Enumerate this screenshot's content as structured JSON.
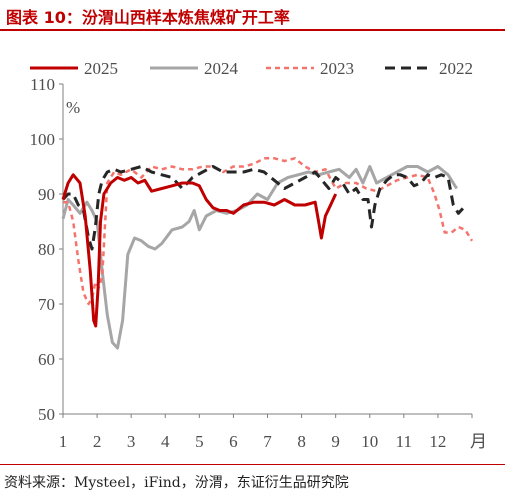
{
  "title": "图表 10：汾渭山西样本炼焦煤矿开工率",
  "source": "资料来源：Mysteel，iFind，汾渭，东证衍生品研究院",
  "colors": {
    "title_red": "#c00000",
    "s2025": "#c00000",
    "s2024": "#a6a6a6",
    "s2023": "#f4736b",
    "s2022": "#262626",
    "axis": "#7f7f7f",
    "text": "#4d4d4d"
  },
  "chart_data": {
    "type": "line",
    "ylabel": "%",
    "xlabel": "月",
    "ylim": [
      50,
      110
    ],
    "yticks": [
      50,
      60,
      70,
      80,
      90,
      100,
      110
    ],
    "xlim": [
      1,
      13
    ],
    "xticks": [
      1,
      2,
      3,
      4,
      5,
      6,
      7,
      8,
      9,
      10,
      11,
      12
    ],
    "legend_position": "top",
    "series": [
      {
        "name": "2025",
        "style": "solid",
        "x": [
          1.0,
          1.15,
          1.3,
          1.5,
          1.65,
          1.8,
          1.9,
          1.96,
          2.03,
          2.1,
          2.2,
          2.4,
          2.6,
          2.8,
          3.0,
          3.2,
          3.4,
          3.6,
          3.9,
          4.2,
          4.5,
          4.8,
          5.0,
          5.2,
          5.4,
          5.6,
          5.8,
          6.0,
          6.3,
          6.6,
          6.9,
          7.2,
          7.5,
          7.8,
          8.1,
          8.4,
          8.5,
          8.58,
          8.7,
          8.85,
          9.0
        ],
        "y": [
          89,
          92,
          93.5,
          92,
          86,
          76,
          67,
          66,
          73,
          85,
          90,
          92,
          93,
          92.5,
          93,
          92,
          92.5,
          90.5,
          91,
          91.5,
          92,
          92,
          91.5,
          89,
          87.5,
          87,
          87,
          86.5,
          88,
          88.5,
          88.5,
          88,
          89,
          88,
          88,
          88.5,
          85,
          82,
          86,
          88,
          90
        ]
      },
      {
        "name": "2024",
        "style": "solid",
        "x": [
          1.0,
          1.15,
          1.3,
          1.5,
          1.7,
          1.85,
          2.0,
          2.15,
          2.3,
          2.45,
          2.6,
          2.75,
          2.9,
          3.1,
          3.3,
          3.5,
          3.7,
          3.9,
          4.2,
          4.5,
          4.7,
          4.85,
          5.0,
          5.2,
          5.5,
          5.8,
          6.1,
          6.4,
          6.7,
          7.0,
          7.3,
          7.6,
          7.9,
          8.2,
          8.5,
          8.8,
          9.1,
          9.4,
          9.6,
          9.8,
          10.0,
          10.2,
          10.5,
          10.8,
          11.1,
          11.4,
          11.7,
          12.0,
          12.3,
          12.55
        ],
        "y": [
          85.5,
          89,
          88,
          86.5,
          88.5,
          87,
          85,
          76,
          68,
          63,
          62,
          67,
          79,
          82,
          81.5,
          80.5,
          80,
          81,
          83.5,
          84,
          85,
          87,
          83.5,
          86,
          87,
          86.5,
          87,
          88,
          90,
          89,
          92,
          93,
          93.5,
          94,
          93.5,
          94,
          94.5,
          93,
          94.5,
          92,
          95,
          92,
          93,
          94,
          95,
          95,
          94,
          95,
          93.5,
          91
        ]
      },
      {
        "name": "2023",
        "style": "dash",
        "x": [
          1.0,
          1.15,
          1.3,
          1.45,
          1.6,
          1.75,
          1.85,
          1.95,
          2.05,
          2.15,
          2.3,
          2.5,
          2.7,
          3.0,
          3.3,
          3.6,
          3.9,
          4.2,
          4.5,
          4.8,
          5.1,
          5.4,
          5.7,
          6.0,
          6.3,
          6.6,
          6.9,
          7.2,
          7.5,
          7.8,
          8.1,
          8.4,
          8.7,
          9.0,
          9.3,
          9.6,
          9.9,
          10.2,
          10.5,
          10.8,
          11.1,
          11.4,
          11.7,
          11.9,
          12.05,
          12.2,
          12.4,
          12.6,
          12.8,
          13.0
        ],
        "y": [
          88.5,
          88.5,
          85,
          78,
          72,
          70,
          71,
          74,
          73,
          75,
          92,
          94,
          93.5,
          94.5,
          93,
          95,
          94.5,
          95,
          94.5,
          94.5,
          95,
          95,
          94,
          95,
          95,
          95.5,
          96.5,
          96.5,
          96,
          96.5,
          95,
          94,
          94.5,
          91,
          92,
          92,
          91,
          90.5,
          91.5,
          92.5,
          93,
          93.5,
          93,
          90,
          87,
          83,
          83,
          84,
          83.5,
          81.5
        ]
      },
      {
        "name": "2022",
        "style": "dash",
        "x": [
          1.0,
          1.15,
          1.3,
          1.45,
          1.6,
          1.75,
          1.85,
          1.95,
          2.05,
          2.15,
          2.3,
          2.5,
          2.7,
          3.0,
          3.3,
          3.6,
          3.9,
          4.2,
          4.5,
          4.8,
          5.1,
          5.4,
          5.7,
          6.0,
          6.3,
          6.6,
          6.9,
          7.2,
          7.5,
          7.8,
          8.1,
          8.4,
          8.6,
          8.8,
          9.0,
          9.2,
          9.4,
          9.6,
          9.8,
          9.95,
          10.05,
          10.15,
          10.3,
          10.5,
          10.7,
          10.9,
          11.1,
          11.3,
          11.5,
          11.7,
          11.9,
          12.1,
          12.3,
          12.45,
          12.6,
          12.75
        ],
        "y": [
          89,
          90,
          90,
          88,
          87,
          82,
          80,
          84,
          90,
          92.5,
          94,
          94.5,
          94,
          94.5,
          95,
          94,
          93.5,
          93,
          91,
          93,
          94,
          95,
          94,
          94,
          94,
          94.5,
          94,
          92.5,
          91,
          92,
          93,
          94,
          92.5,
          91,
          93,
          92,
          90,
          91,
          89,
          89,
          84,
          88,
          91,
          92.5,
          93.5,
          93.5,
          93,
          91.5,
          92,
          93.5,
          93,
          93.5,
          93,
          88,
          86.5,
          87.5
        ]
      }
    ]
  }
}
